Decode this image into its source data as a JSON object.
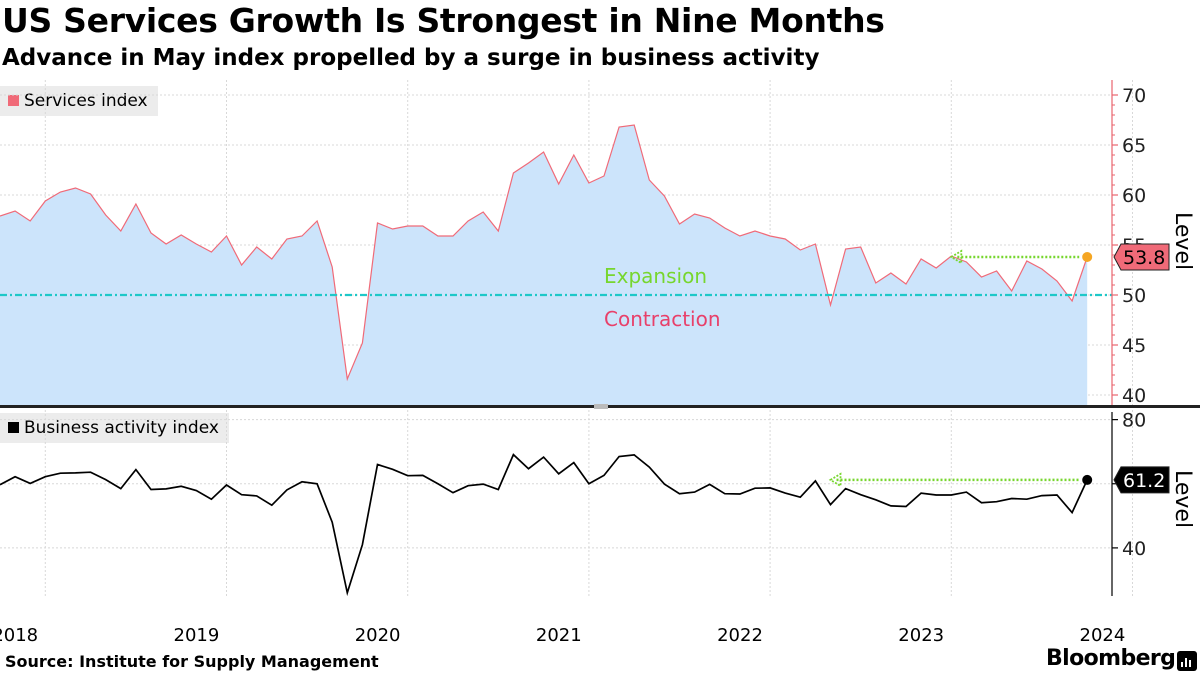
{
  "header": {
    "title": "US Services Growth Is Strongest in Nine Months",
    "subtitle": "Advance in May index propelled by a surge in business activity"
  },
  "footer": {
    "source": "Source: Institute for Supply Management",
    "brand": "Bloomberg"
  },
  "colors": {
    "services_fill": "#cce4fb",
    "services_line": "#f06a78",
    "services_legend": "#f06a78",
    "services_axis": "#e8646e",
    "services_latest_badge": "#f06a78",
    "latest_dot": "#f5a623",
    "arrow": "#77d62e",
    "threshold": "#1ec8c8",
    "expansion": "#77d62e",
    "contraction": "#e8406a",
    "business_line": "#000000"
  },
  "chart_data": [
    {
      "type": "area",
      "name": "services-panel",
      "legend": "Services index",
      "ylabel": "Level",
      "ylim": [
        39,
        71.5
      ],
      "yticks": [
        40,
        45,
        50,
        55,
        60,
        65,
        70
      ],
      "x_start": "2017-10",
      "x_end": "2024-05",
      "threshold": 50,
      "threshold_labels": {
        "above": "Expansion",
        "below": "Contraction"
      },
      "latest_value": "53.8",
      "values": [
        57.9,
        58.4,
        57.4,
        59.4,
        60.3,
        60.7,
        60.1,
        58.0,
        56.4,
        59.1,
        56.2,
        55.1,
        56.0,
        55.1,
        54.3,
        55.9,
        53.0,
        54.8,
        53.6,
        55.6,
        55.9,
        57.4,
        52.8,
        41.6,
        45.2,
        57.2,
        56.6,
        56.9,
        56.9,
        55.9,
        55.9,
        57.4,
        58.3,
        56.4,
        62.2,
        63.2,
        64.3,
        61.1,
        64.0,
        61.2,
        61.9,
        66.8,
        67.0,
        61.5,
        59.9,
        57.1,
        58.1,
        57.7,
        56.7,
        55.9,
        56.4,
        55.9,
        55.6,
        54.5,
        55.1,
        49.0,
        54.6,
        54.8,
        51.2,
        52.2,
        51.1,
        53.6,
        52.7,
        53.9,
        53.3,
        51.8,
        52.4,
        50.4,
        53.4,
        52.6,
        51.4,
        49.4,
        53.8
      ]
    },
    {
      "type": "line",
      "name": "business-activity-panel",
      "legend": "Business activity index",
      "ylabel": "Level",
      "ylim": [
        25,
        83
      ],
      "yticks": [
        40,
        60,
        80
      ],
      "x_start": "2017-10",
      "x_end": "2024-05",
      "latest_value": "61.2",
      "values": [
        59.7,
        62.2,
        60.1,
        62.2,
        63.3,
        63.4,
        63.6,
        61.3,
        58.5,
        64.4,
        58.2,
        58.4,
        59.2,
        57.9,
        55.2,
        59.6,
        56.6,
        56.2,
        53.3,
        58.1,
        60.6,
        60.0,
        48.0,
        26.0,
        41.0,
        66.0,
        64.5,
        62.5,
        62.6,
        60.0,
        57.2,
        59.4,
        59.9,
        58.2,
        69.1,
        64.7,
        68.3,
        63.1,
        66.6,
        60.0,
        62.6,
        68.5,
        69.0,
        65.2,
        59.9,
        56.9,
        57.4,
        59.8,
        56.9,
        56.8,
        58.6,
        58.7,
        57.1,
        55.8,
        60.9,
        53.5,
        58.5,
        56.6,
        55.0,
        53.1,
        52.9,
        57.1,
        56.5,
        56.5,
        57.4,
        54.1,
        54.4,
        55.4,
        55.2,
        56.3,
        56.5,
        51.0,
        61.2
      ]
    }
  ],
  "x_axis": {
    "tick_labels": [
      "2018",
      "2019",
      "2020",
      "2021",
      "2022",
      "2023",
      "2024"
    ]
  }
}
